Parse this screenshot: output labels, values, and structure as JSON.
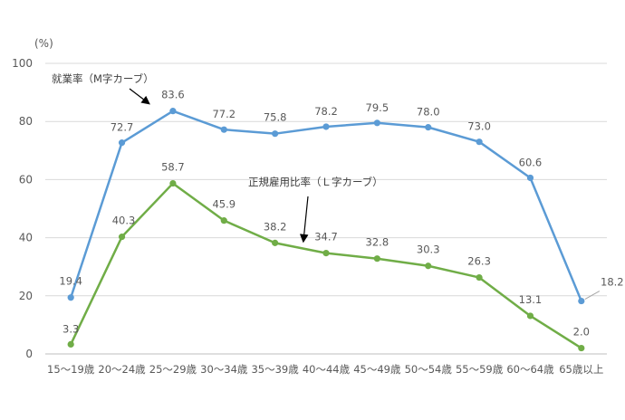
{
  "chart_data": {
    "type": "line",
    "y_unit_label": "(%)",
    "ylim": [
      0,
      100
    ],
    "y_ticks": [
      0,
      20,
      40,
      60,
      80,
      100
    ],
    "grid": true,
    "categories": [
      "15～19歳",
      "20～24歳",
      "25～29歳",
      "30～34歳",
      "35～39歳",
      "40～44歳",
      "45～49歳",
      "50～54歳",
      "55～59歳",
      "60～64歳",
      "65歳以上"
    ],
    "series": [
      {
        "name": "就業率（M字カーブ）",
        "color": "#5B9BD5",
        "values": [
          19.4,
          72.7,
          83.6,
          77.2,
          75.8,
          78.2,
          79.5,
          78.0,
          73.0,
          60.6,
          18.2
        ],
        "labels": [
          "19.4",
          "72.7",
          "83.6",
          "77.2",
          "75.8",
          "78.2",
          "79.5",
          "78.0",
          "73.0",
          "60.6",
          "18.2"
        ]
      },
      {
        "name": "正規雇用比率（Ｌ字カーブ）",
        "color": "#70AD47",
        "values": [
          3.3,
          40.3,
          58.7,
          45.9,
          38.2,
          34.7,
          32.8,
          30.3,
          26.3,
          13.1,
          2.0
        ],
        "labels": [
          "3.3",
          "40.3",
          "58.7",
          "45.9",
          "38.2",
          "34.7",
          "32.8",
          "30.3",
          "26.3",
          "13.1",
          "2.0"
        ]
      }
    ],
    "annotations": {
      "m_curve": "就業率（M字カーブ）",
      "l_curve": "正規雇用比率（Ｌ字カーブ）"
    }
  }
}
